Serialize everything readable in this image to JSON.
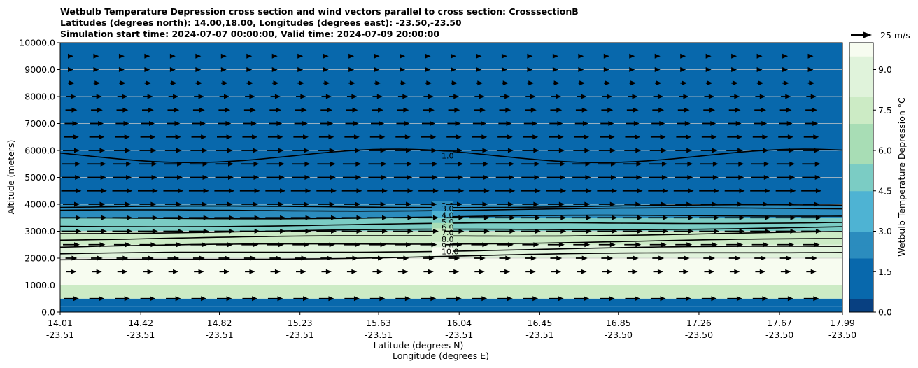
{
  "chart_data": {
    "type": "heatmap",
    "title_lines": [
      "Wetbulb Temperature Depression cross section and wind vectors parallel to cross section: CrosssectionB",
      "Latitudes (degrees north): 14.00,18.00, Longitudes (degrees east): -23.50,-23.50",
      "Simulation start time: 2024-07-07 00:00:00, Valid time: 2024-07-09 20:00:00"
    ],
    "ylabel": "Altitude (meters)",
    "xlabel_lat": "Latitude (degrees N)",
    "xlabel_lon": "Longitude (degrees E)",
    "ylim": [
      0,
      10000
    ],
    "y_ticks": [
      "0.0",
      "1000.0",
      "2000.0",
      "3000.0",
      "4000.0",
      "5000.0",
      "6000.0",
      "7000.0",
      "8000.0",
      "9000.0",
      "10000.0"
    ],
    "y_tick_values": [
      0,
      1000,
      2000,
      3000,
      4000,
      5000,
      6000,
      7000,
      8000,
      9000,
      10000
    ],
    "x_ticks_lat": [
      "14.01",
      "14.42",
      "14.82",
      "15.23",
      "15.63",
      "16.04",
      "16.45",
      "16.85",
      "17.26",
      "17.67",
      "17.99"
    ],
    "x_ticks_lon": [
      "-23.51",
      "-23.51",
      "-23.51",
      "-23.51",
      "-23.51",
      "-23.51",
      "-23.51",
      "-23.50",
      "-23.50",
      "-23.50",
      "-23.50"
    ],
    "x_tick_values": [
      14.01,
      14.42,
      14.82,
      15.23,
      15.63,
      16.04,
      16.45,
      16.85,
      17.26,
      17.67,
      17.99
    ],
    "xlim": [
      14.01,
      17.99
    ],
    "grid": "horizontal",
    "colorbar": {
      "label": "Wetbulb Temperature Depression °C",
      "ticks": [
        "0.0",
        "1.5",
        "3.0",
        "4.5",
        "6.0",
        "7.5",
        "9.0"
      ],
      "tick_values": [
        0,
        1.5,
        3,
        4.5,
        6,
        7.5,
        9
      ],
      "range": [
        0,
        10
      ],
      "colormap": "GnBu_r",
      "colors": [
        "#084081",
        "#0868ac",
        "#2b8cbe",
        "#4eb3d3",
        "#7bccc4",
        "#a8ddb5",
        "#ccebc5",
        "#e0f3db",
        "#f7fcf0"
      ]
    },
    "wind_reference": {
      "label": "25 m/s",
      "speed": 25
    },
    "layers": [
      {
        "z0": 0,
        "z1": 200,
        "depression": 1.0
      },
      {
        "z0": 200,
        "z1": 500,
        "depression": 1.5
      },
      {
        "z0": 500,
        "z1": 1000,
        "depression": 8.0
      },
      {
        "z0": 1000,
        "z1": 2000,
        "depression": 10.0
      },
      {
        "z0": 2000,
        "z1": 2500,
        "depression": 9.0
      },
      {
        "z0": 2500,
        "z1": 3000,
        "depression": 7.0
      },
      {
        "z0": 3000,
        "z1": 3500,
        "depression": 5.0
      },
      {
        "z0": 3500,
        "z1": 4000,
        "depression": 3.0
      },
      {
        "z0": 4000,
        "z1": 5000,
        "depression": 1.5
      },
      {
        "z0": 5000,
        "z1": 8500,
        "depression": 0.8
      },
      {
        "z0": 8500,
        "z1": 10000,
        "depression": 1.5
      }
    ],
    "contours": [
      {
        "level": 2.0,
        "label": "2.0",
        "altitude": 3950
      },
      {
        "level": 3.0,
        "label": "3.0",
        "altitude": 3850
      },
      {
        "level": 4.0,
        "label": "4.0",
        "altitude": 3600
      },
      {
        "level": 5.0,
        "label": "5.0",
        "altitude": 3350
      },
      {
        "level": 6.0,
        "label": "6.0",
        "altitude": 3150
      },
      {
        "level": 7.0,
        "label": "7.0",
        "altitude": 2950
      },
      {
        "level": 8.0,
        "label": "8.0",
        "altitude": 2700
      },
      {
        "level": 9.0,
        "label": "9.0",
        "altitude": 2450
      },
      {
        "level": 10.0,
        "label": "10.0",
        "altitude": 2250
      },
      {
        "level": 1.0,
        "label": "1.0",
        "altitude": 5800
      }
    ],
    "wind_rows": [
      {
        "altitude": 500,
        "speed": 18
      },
      {
        "altitude": 1500,
        "speed": 12
      },
      {
        "altitude": 2000,
        "speed": 14
      },
      {
        "altitude": 2500,
        "speed": 20
      },
      {
        "altitude": 3000,
        "speed": 24
      },
      {
        "altitude": 3500,
        "speed": 24
      },
      {
        "altitude": 4000,
        "speed": 20
      },
      {
        "altitude": 4500,
        "speed": 24
      },
      {
        "altitude": 5000,
        "speed": 22
      },
      {
        "altitude": 5500,
        "speed": 22
      },
      {
        "altitude": 6000,
        "speed": 20
      },
      {
        "altitude": 6500,
        "speed": 18
      },
      {
        "altitude": 7000,
        "speed": 16
      },
      {
        "altitude": 7500,
        "speed": 14
      },
      {
        "altitude": 8000,
        "speed": 12
      },
      {
        "altitude": 8500,
        "speed": 8
      },
      {
        "altitude": 9000,
        "speed": 5
      },
      {
        "altitude": 9500,
        "speed": 3
      }
    ]
  }
}
